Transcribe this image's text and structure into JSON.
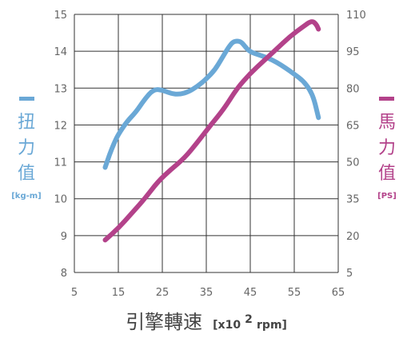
{
  "chart_data": {
    "type": "line",
    "grid": true,
    "x": {
      "ticks": [
        "5",
        "15",
        "25",
        "35",
        "45",
        "55",
        "65"
      ],
      "range": [
        5,
        65
      ],
      "label": "引擎轉速",
      "unit_prefix": "[x10",
      "unit_exp": "2",
      "unit_suffix": " rpm]"
    },
    "y_left": {
      "ticks": [
        "8",
        "9",
        "10",
        "11",
        "12",
        "13",
        "14",
        "15"
      ],
      "range": [
        8,
        15
      ],
      "label_chars": [
        "扭",
        "力",
        "值"
      ],
      "unit": "[kg-m]",
      "color": "#6aa8d6"
    },
    "y_right": {
      "ticks": [
        "5",
        "20",
        "35",
        "50",
        "65",
        "80",
        "95",
        "110"
      ],
      "range": [
        5,
        110
      ],
      "label_chars": [
        "馬",
        "力",
        "值"
      ],
      "unit": "[PS]",
      "color": "#b3428a"
    },
    "series": [
      {
        "axis": "left",
        "color": "#6aa8d6",
        "points": [
          [
            12,
            10.85
          ],
          [
            13,
            11.2
          ],
          [
            14,
            11.5
          ],
          [
            15,
            11.75
          ],
          [
            17,
            12.1
          ],
          [
            19,
            12.35
          ],
          [
            21,
            12.7
          ],
          [
            23,
            12.97
          ],
          [
            25,
            12.95
          ],
          [
            27,
            12.85
          ],
          [
            29,
            12.83
          ],
          [
            31,
            12.9
          ],
          [
            33,
            13.05
          ],
          [
            35,
            13.25
          ],
          [
            37,
            13.5
          ],
          [
            38.5,
            13.8
          ],
          [
            40,
            14.1
          ],
          [
            41,
            14.25
          ],
          [
            42,
            14.28
          ],
          [
            43,
            14.25
          ],
          [
            44,
            14.1
          ],
          [
            45,
            13.98
          ],
          [
            47,
            13.9
          ],
          [
            49,
            13.82
          ],
          [
            51,
            13.7
          ],
          [
            53,
            13.55
          ],
          [
            55,
            13.38
          ],
          [
            57,
            13.2
          ],
          [
            58.5,
            12.97
          ],
          [
            59.5,
            12.7
          ],
          [
            60.5,
            12.2
          ]
        ]
      },
      {
        "axis": "right",
        "color": "#b3428a",
        "points": [
          [
            12,
            18.2
          ],
          [
            15,
            23
          ],
          [
            18,
            29
          ],
          [
            21,
            35
          ],
          [
            24,
            42
          ],
          [
            27,
            47
          ],
          [
            30,
            51.5
          ],
          [
            33,
            58
          ],
          [
            36,
            65
          ],
          [
            39,
            71.5
          ],
          [
            42,
            80
          ],
          [
            45,
            86
          ],
          [
            48,
            91
          ],
          [
            51,
            96
          ],
          [
            54,
            101
          ],
          [
            57,
            105
          ],
          [
            59,
            107.5
          ],
          [
            60,
            106
          ],
          [
            60.5,
            104
          ]
        ]
      }
    ]
  }
}
